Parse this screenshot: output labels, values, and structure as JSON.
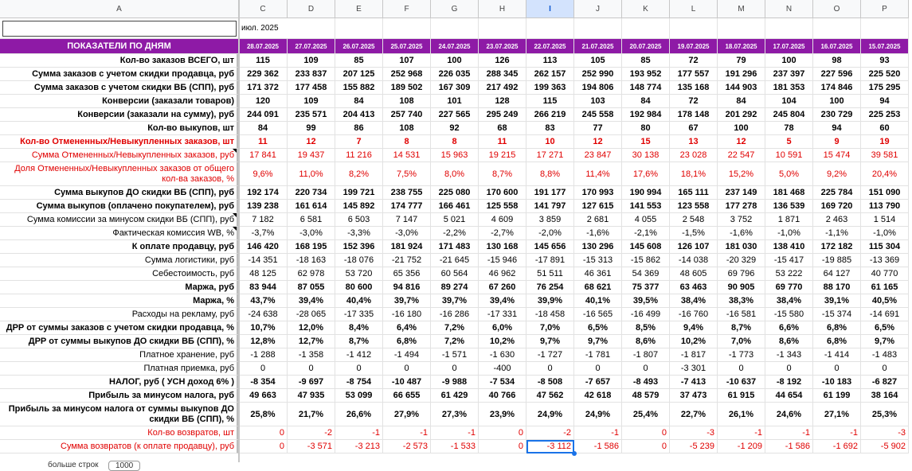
{
  "columns": [
    "A",
    "C",
    "D",
    "E",
    "F",
    "G",
    "H",
    "I",
    "J",
    "K",
    "L",
    "M",
    "N",
    "O",
    "P"
  ],
  "selected_column": "I",
  "month_label": "июл. 2025",
  "header_label": "ПОКАЗАТЕЛИ ПО ДНЯМ",
  "dates": [
    "28.07.2025",
    "27.07.2025",
    "26.07.2025",
    "25.07.2025",
    "24.07.2025",
    "23.07.2025",
    "22.07.2025",
    "21.07.2025",
    "20.07.2025",
    "19.07.2025",
    "18.07.2025",
    "17.07.2025",
    "16.07.2025",
    "15.07.2025"
  ],
  "rows": [
    {
      "label": "Кол-во заказов ВСЕГО, шт",
      "style": "bold",
      "values": [
        "115",
        "109",
        "85",
        "107",
        "100",
        "126",
        "113",
        "105",
        "85",
        "72",
        "79",
        "100",
        "98",
        "93"
      ]
    },
    {
      "label": "Сумма заказов с учетом скидки продавца, руб",
      "style": "bold",
      "values": [
        "229 362",
        "233 837",
        "207 125",
        "252 968",
        "226 035",
        "288 345",
        "262 157",
        "252 990",
        "193 952",
        "177 557",
        "191 296",
        "237 397",
        "227 596",
        "225 520"
      ]
    },
    {
      "label": "Сумма заказов с учетом скидки ВБ (СПП), руб",
      "style": "bold",
      "values": [
        "171 372",
        "177 458",
        "155 882",
        "189 502",
        "167 309",
        "217 492",
        "199 363",
        "194 806",
        "148 774",
        "135 168",
        "144 903",
        "181 353",
        "174 846",
        "175 295"
      ]
    },
    {
      "label": "Конверсии (заказали товаров)",
      "style": "bold",
      "values": [
        "120",
        "109",
        "84",
        "108",
        "101",
        "128",
        "115",
        "103",
        "84",
        "72",
        "84",
        "104",
        "100",
        "94"
      ]
    },
    {
      "label": "Конверсии (заказали на сумму), руб",
      "style": "bold",
      "values": [
        "244 091",
        "235 571",
        "204 413",
        "257 740",
        "227 565",
        "295 249",
        "266 219",
        "245 558",
        "192 984",
        "178 148",
        "201 292",
        "245 804",
        "230 729",
        "225 253"
      ]
    },
    {
      "label": "Кол-во выкупов, шт",
      "style": "bold",
      "values": [
        "84",
        "99",
        "86",
        "108",
        "92",
        "68",
        "83",
        "77",
        "80",
        "67",
        "100",
        "78",
        "94",
        "60"
      ]
    },
    {
      "label": "Кол-во Отмененных/Невыкупленных заказов, шт",
      "style": "bold red",
      "values": [
        "11",
        "12",
        "7",
        "8",
        "8",
        "11",
        "10",
        "12",
        "15",
        "13",
        "12",
        "5",
        "9",
        "19"
      ]
    },
    {
      "label": "Сумма Отмененных/Невыкупленных заказов, руб",
      "style": "red",
      "note": true,
      "values": [
        "17 841",
        "19 437",
        "11 216",
        "14 531",
        "15 963",
        "19 215",
        "17 271",
        "23 847",
        "30 138",
        "23 028",
        "22 547",
        "10 591",
        "15 474",
        "39 581"
      ]
    },
    {
      "label": "Доля Отмененных/Невыкупленных заказов от общего кол-ва заказов, %",
      "style": "red wrap",
      "tall": true,
      "values": [
        "9,6%",
        "11,0%",
        "8,2%",
        "7,5%",
        "8,0%",
        "8,7%",
        "8,8%",
        "11,4%",
        "17,6%",
        "18,1%",
        "15,2%",
        "5,0%",
        "9,2%",
        "20,4%"
      ]
    },
    {
      "label": "Сумма выкупов ДО скидки ВБ (СПП), руб",
      "style": "bold",
      "values": [
        "192 174",
        "220 734",
        "199 721",
        "238 755",
        "225 080",
        "170 600",
        "191 177",
        "170 993",
        "190 994",
        "165 111",
        "237 149",
        "181 468",
        "225 784",
        "151 090"
      ]
    },
    {
      "label": "Сумма выкупов (оплачено покупателем), руб",
      "style": "bold",
      "values": [
        "139 238",
        "161 614",
        "145 892",
        "174 777",
        "166 461",
        "125 558",
        "141 797",
        "127 615",
        "141 553",
        "123 558",
        "177 278",
        "136 539",
        "169 720",
        "113 790"
      ]
    },
    {
      "label": "Сумма комиссии за минусом скидки ВБ (СПП), руб",
      "style": "",
      "note": true,
      "values": [
        "7 182",
        "6 581",
        "6 503",
        "7 147",
        "5 021",
        "4 609",
        "3 859",
        "2 681",
        "4 055",
        "2 548",
        "3 752",
        "1 871",
        "2 463",
        "1 514"
      ]
    },
    {
      "label": "Фактическая комиссия WB, %",
      "style": "",
      "note": true,
      "values": [
        "-3,7%",
        "-3,0%",
        "-3,3%",
        "-3,0%",
        "-2,2%",
        "-2,7%",
        "-2,0%",
        "-1,6%",
        "-2,1%",
        "-1,5%",
        "-1,6%",
        "-1,0%",
        "-1,1%",
        "-1,0%"
      ]
    },
    {
      "label": "К оплате продавцу, руб",
      "style": "bold",
      "values": [
        "146 420",
        "168 195",
        "152 396",
        "181 924",
        "171 483",
        "130 168",
        "145 656",
        "130 296",
        "145 608",
        "126 107",
        "181 030",
        "138 410",
        "172 182",
        "115 304"
      ]
    },
    {
      "label": "Сумма логистики, руб",
      "style": "",
      "values": [
        "-14 351",
        "-18 163",
        "-18 076",
        "-21 752",
        "-21 645",
        "-15 946",
        "-17 891",
        "-15 313",
        "-15 862",
        "-14 038",
        "-20 329",
        "-15 417",
        "-19 885",
        "-13 369"
      ]
    },
    {
      "label": "Себестоимость, руб",
      "style": "",
      "values": [
        "48 125",
        "62 978",
        "53 720",
        "65 356",
        "60 564",
        "46 962",
        "51 511",
        "46 361",
        "54 369",
        "48 605",
        "69 796",
        "53 222",
        "64 127",
        "40 770"
      ]
    },
    {
      "label": "Маржа, руб",
      "style": "bold",
      "values": [
        "83 944",
        "87 055",
        "80 600",
        "94 816",
        "89 274",
        "67 260",
        "76 254",
        "68 621",
        "75 377",
        "63 463",
        "90 905",
        "69 770",
        "88 170",
        "61 165"
      ]
    },
    {
      "label": "Маржа, %",
      "style": "bold",
      "values": [
        "43,7%",
        "39,4%",
        "40,4%",
        "39,7%",
        "39,7%",
        "39,4%",
        "39,9%",
        "40,1%",
        "39,5%",
        "38,4%",
        "38,3%",
        "38,4%",
        "39,1%",
        "40,5%"
      ]
    },
    {
      "label": "Расходы на рекламу, руб",
      "style": "",
      "values": [
        "-24 638",
        "-28 065",
        "-17 335",
        "-16 180",
        "-16 286",
        "-17 331",
        "-18 458",
        "-16 565",
        "-16 499",
        "-16 760",
        "-16 581",
        "-15 580",
        "-15 374",
        "-14 691"
      ]
    },
    {
      "label": "ДРР от суммы заказов с учетом скидки продавца, %",
      "style": "bold",
      "values": [
        "10,7%",
        "12,0%",
        "8,4%",
        "6,4%",
        "7,2%",
        "6,0%",
        "7,0%",
        "6,5%",
        "8,5%",
        "9,4%",
        "8,7%",
        "6,6%",
        "6,8%",
        "6,5%"
      ]
    },
    {
      "label": "ДРР от суммы выкупов ДО скидки ВБ (СПП), %",
      "style": "bold",
      "values": [
        "12,8%",
        "12,7%",
        "8,7%",
        "6,8%",
        "7,2%",
        "10,2%",
        "9,7%",
        "9,7%",
        "8,6%",
        "10,2%",
        "7,0%",
        "8,6%",
        "6,8%",
        "9,7%"
      ]
    },
    {
      "label": "Платное хранение, руб",
      "style": "",
      "values": [
        "-1 288",
        "-1 358",
        "-1 412",
        "-1 494",
        "-1 571",
        "-1 630",
        "-1 727",
        "-1 781",
        "-1 807",
        "-1 817",
        "-1 773",
        "-1 343",
        "-1 414",
        "-1 483"
      ]
    },
    {
      "label": "Платная приемка, руб",
      "style": "",
      "values": [
        "0",
        "0",
        "0",
        "0",
        "0",
        "-400",
        "0",
        "0",
        "0",
        "-3 301",
        "0",
        "0",
        "0",
        "0"
      ]
    },
    {
      "label": "НАЛОГ, руб ( УСН доход 6% )",
      "style": "bold",
      "values": [
        "-8 354",
        "-9 697",
        "-8 754",
        "-10 487",
        "-9 988",
        "-7 534",
        "-8 508",
        "-7 657",
        "-8 493",
        "-7 413",
        "-10 637",
        "-8 192",
        "-10 183",
        "-6 827"
      ]
    },
    {
      "label": "Прибыль за минусом налога, руб",
      "style": "bold",
      "values": [
        "49 663",
        "47 935",
        "53 099",
        "66 655",
        "61 429",
        "40 766",
        "47 562",
        "42 618",
        "48 579",
        "37 473",
        "61 915",
        "44 654",
        "61 199",
        "38 164"
      ]
    },
    {
      "label": "Прибыль за минусом налога от суммы выкупов ДО скидки ВБ (СПП), %",
      "style": "bold wrap",
      "tall": true,
      "values": [
        "25,8%",
        "21,7%",
        "26,6%",
        "27,9%",
        "27,3%",
        "23,9%",
        "24,9%",
        "24,9%",
        "25,4%",
        "22,7%",
        "26,1%",
        "24,6%",
        "27,1%",
        "25,3%"
      ]
    },
    {
      "label": "Кол-во возвратов, шт",
      "style": "red",
      "values": [
        "0",
        "-2",
        "-1",
        "-1",
        "-1",
        "0",
        "-2",
        "-1",
        "0",
        "-3",
        "-1",
        "-1",
        "-1",
        "-3"
      ]
    },
    {
      "label": "Сумма возвратов (к оплате продавцу), руб",
      "style": "red",
      "values": [
        "0",
        "-3 571",
        "-3 213",
        "-2 573",
        "-1 533",
        "0",
        "-3 112",
        "-1 586",
        "0",
        "-5 239",
        "-1 209",
        "-1 586",
        "-1 692",
        "-5 902"
      ]
    }
  ],
  "footer_text": "больше строк",
  "footer_value": "1000",
  "colors": {
    "header_purple": "#8e1aa6",
    "red": "#e00000",
    "selection": "#1a73e8"
  }
}
